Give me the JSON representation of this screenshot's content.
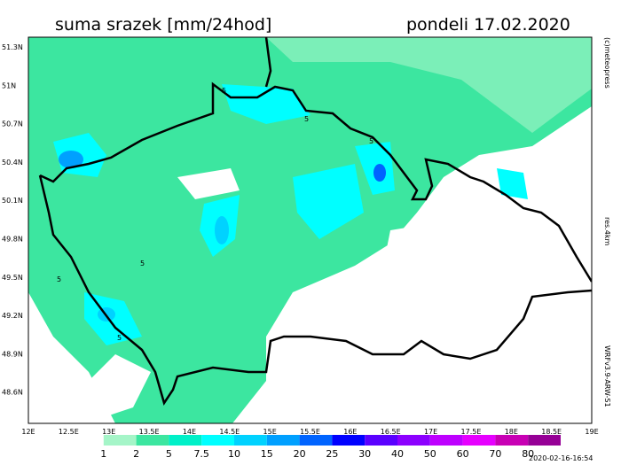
{
  "header": {
    "title": "suma srazek [mm/24hod]",
    "date": "pondeli 17.02.2020"
  },
  "map": {
    "lat_labels": [
      "51.3N",
      "51N",
      "50.7N",
      "50.4N",
      "50.1N",
      "49.8N",
      "49.5N",
      "49.2N",
      "48.9N",
      "48.6N"
    ],
    "lon_labels": [
      "12E",
      "12.5E",
      "13E",
      "13.5E",
      "14E",
      "14.5E",
      "15E",
      "15.5E",
      "16E",
      "16.5E",
      "17E",
      "17.5E",
      "18E",
      "18.5E",
      "19E"
    ],
    "contour_labels": [
      "5",
      "5",
      "5",
      "5",
      "5",
      "5"
    ]
  },
  "side_texts": {
    "copyright": "(c)meteopress",
    "resolution": "res.4km",
    "model": "WRFv3.9-ARW-S1"
  },
  "legend": {
    "labels": [
      "1",
      "2",
      "5",
      "7.5",
      "10",
      "15",
      "20",
      "25",
      "30",
      "40",
      "50",
      "60",
      "70",
      "80"
    ],
    "colors": [
      "#ffffff",
      "#a5f5c8",
      "#3ce6a0",
      "#00f0c8",
      "#00ffff",
      "#00d2ff",
      "#00a0ff",
      "#0064ff",
      "#0000ff",
      "#5a00ff",
      "#8c00ff",
      "#be00ff",
      "#e600ff",
      "#c800b4",
      "#960096"
    ]
  },
  "footer": {
    "timestamp": "2020-02-16-16:54"
  }
}
